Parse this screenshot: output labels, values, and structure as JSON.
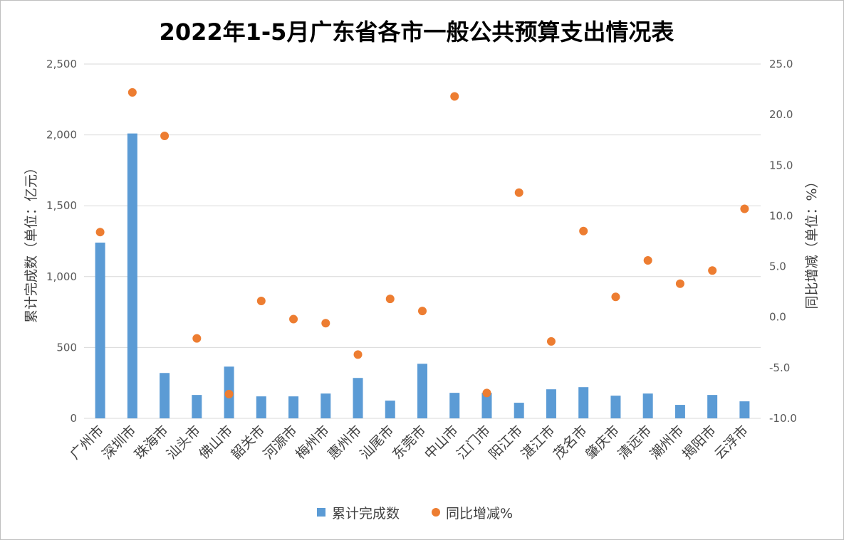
{
  "chart_data": {
    "type": "bar",
    "title": "2022年1-5月广东省各市一般公共预算支出情况表",
    "ylabel": "累计完成数（单位：亿元）",
    "y2label": "同比增减（单位：%）",
    "ylim": [
      0,
      2500
    ],
    "y2lim": [
      -10,
      25
    ],
    "yticks": [
      "0",
      "500",
      "1,000",
      "1,500",
      "2,000",
      "2,500"
    ],
    "y2ticks": [
      "-10.0",
      "-5.0",
      "0.0",
      "5.0",
      "10.0",
      "15.0",
      "20.0",
      "25.0"
    ],
    "grid": true,
    "legend_position": "bottom",
    "categories": [
      "广州市",
      "深圳市",
      "珠海市",
      "汕头市",
      "佛山市",
      "韶关市",
      "河源市",
      "梅州市",
      "惠州市",
      "汕尾市",
      "东莞市",
      "中山市",
      "江门市",
      "阳江市",
      "湛江市",
      "茂名市",
      "肇庆市",
      "清远市",
      "潮州市",
      "揭阳市",
      "云浮市"
    ],
    "series": [
      {
        "name": "累计完成数",
        "kind": "bar",
        "axis": "left",
        "color": "#5b9bd5",
        "values": [
          1240,
          2010,
          320,
          165,
          365,
          155,
          155,
          175,
          285,
          125,
          385,
          180,
          180,
          110,
          205,
          220,
          160,
          175,
          95,
          165,
          120
        ]
      },
      {
        "name": "同比增减%",
        "kind": "scatter",
        "axis": "right",
        "color": "#ed7d31",
        "values": [
          8.4,
          22.2,
          17.9,
          -2.1,
          -7.6,
          1.6,
          -0.2,
          -0.6,
          -3.7,
          1.8,
          0.6,
          21.8,
          -7.5,
          12.3,
          -2.4,
          8.5,
          2.0,
          5.6,
          3.3,
          4.6,
          10.7
        ]
      }
    ]
  }
}
